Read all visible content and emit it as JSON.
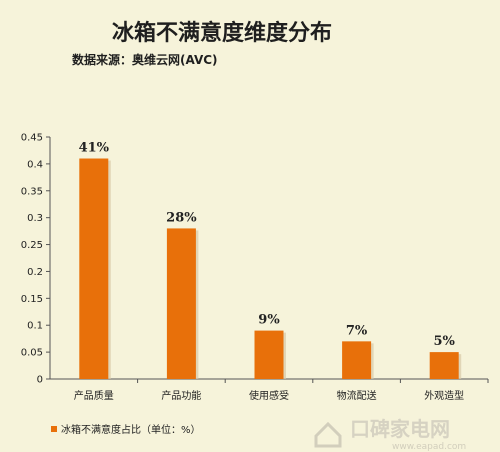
{
  "chart_data": {
    "type": "bar",
    "title": "冰箱不满意度维度分布",
    "subtitle": "数据来源：奥维云网(AVC)",
    "categories": [
      "产品质量",
      "产品功能",
      "使用感受",
      "物流配送",
      "外观造型"
    ],
    "series": [
      {
        "name": "冰箱不满意度占比（单位：%）",
        "values": [
          0.41,
          0.28,
          0.09,
          0.07,
          0.05
        ],
        "data_labels": [
          "41%",
          "28%",
          "9%",
          "7%",
          "5%"
        ],
        "color": "#e8700a"
      }
    ],
    "ylim": [
      0,
      0.45
    ],
    "yticks": [
      "0",
      "0.05",
      "0.1",
      "0.15",
      "0.2",
      "0.25",
      "0.3",
      "0.35",
      "0.4",
      "0.45"
    ],
    "grid": false,
    "legend_position": "bottom-left"
  },
  "watermark": {
    "text": "口碑家电网",
    "url": "www.eapad.com"
  }
}
